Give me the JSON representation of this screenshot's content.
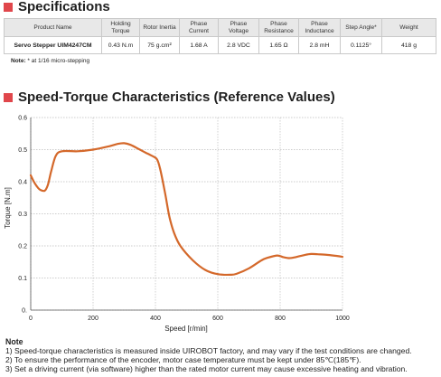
{
  "specifications": {
    "title": "Specifications",
    "headers": [
      "Product Name",
      "Holding Torque",
      "Rotor Inertia",
      "Phase Current",
      "Phase Voltage",
      "Phase Resistance",
      "Phase Inductance",
      "Step Angle*",
      "Weight"
    ],
    "row": [
      "Servo Stepper UIM4247CM",
      "0.43 N.m",
      "75 g.cm²",
      "1.68 A",
      "2.8 VDC",
      "1.65 Ω",
      "2.8 mH",
      "0.1125°",
      "418 g"
    ],
    "note_label": "Note:",
    "note_text": " * at 1/16 micro-stepping"
  },
  "speed_torque": {
    "title": "Speed-Torque Characteristics (Reference Values)"
  },
  "chart_data": {
    "type": "line",
    "title": "",
    "xlabel": "Speed [r/min]",
    "ylabel": "Torque [N.m]",
    "xlim": [
      0,
      1000
    ],
    "ylim": [
      0,
      0.6
    ],
    "x_ticks": [
      "0",
      "200",
      "400",
      "600",
      "800",
      "1000"
    ],
    "y_ticks": [
      "0.",
      "0.1",
      "0.2",
      "0.3",
      "0.4",
      "0.5",
      "0.6"
    ],
    "grid": true,
    "line_color": "#d4682a",
    "series": [
      {
        "x": [
          0,
          10,
          20,
          30,
          45,
          55,
          65,
          80,
          100,
          150,
          200,
          250,
          280,
          300,
          320,
          350,
          370,
          390,
          405,
          415,
          430,
          445,
          460,
          480,
          520,
          560,
          600,
          640,
          660,
          700,
          740,
          760,
          790,
          810,
          830,
          850,
          880,
          900,
          920,
          950,
          980,
          1000
        ],
        "y": [
          0.42,
          0.4,
          0.385,
          0.375,
          0.372,
          0.39,
          0.43,
          0.48,
          0.495,
          0.495,
          0.5,
          0.51,
          0.518,
          0.52,
          0.515,
          0.5,
          0.49,
          0.48,
          0.47,
          0.44,
          0.37,
          0.29,
          0.24,
          0.2,
          0.155,
          0.125,
          0.112,
          0.11,
          0.113,
          0.13,
          0.155,
          0.163,
          0.17,
          0.165,
          0.162,
          0.165,
          0.172,
          0.175,
          0.174,
          0.172,
          0.169,
          0.166
        ]
      }
    ]
  },
  "notes": {
    "title": "Note",
    "items": [
      "1)  Speed-torque characteristics is measured inside UIROBOT factory, and may vary if the test conditions are changed.",
      "2)  To ensure the performance of the encoder, motor case temperature must be kept under 85℃(185℉).",
      "3)  Set a driving current (via software) higher than the rated motor current may cause excessive heating and vibration."
    ]
  }
}
